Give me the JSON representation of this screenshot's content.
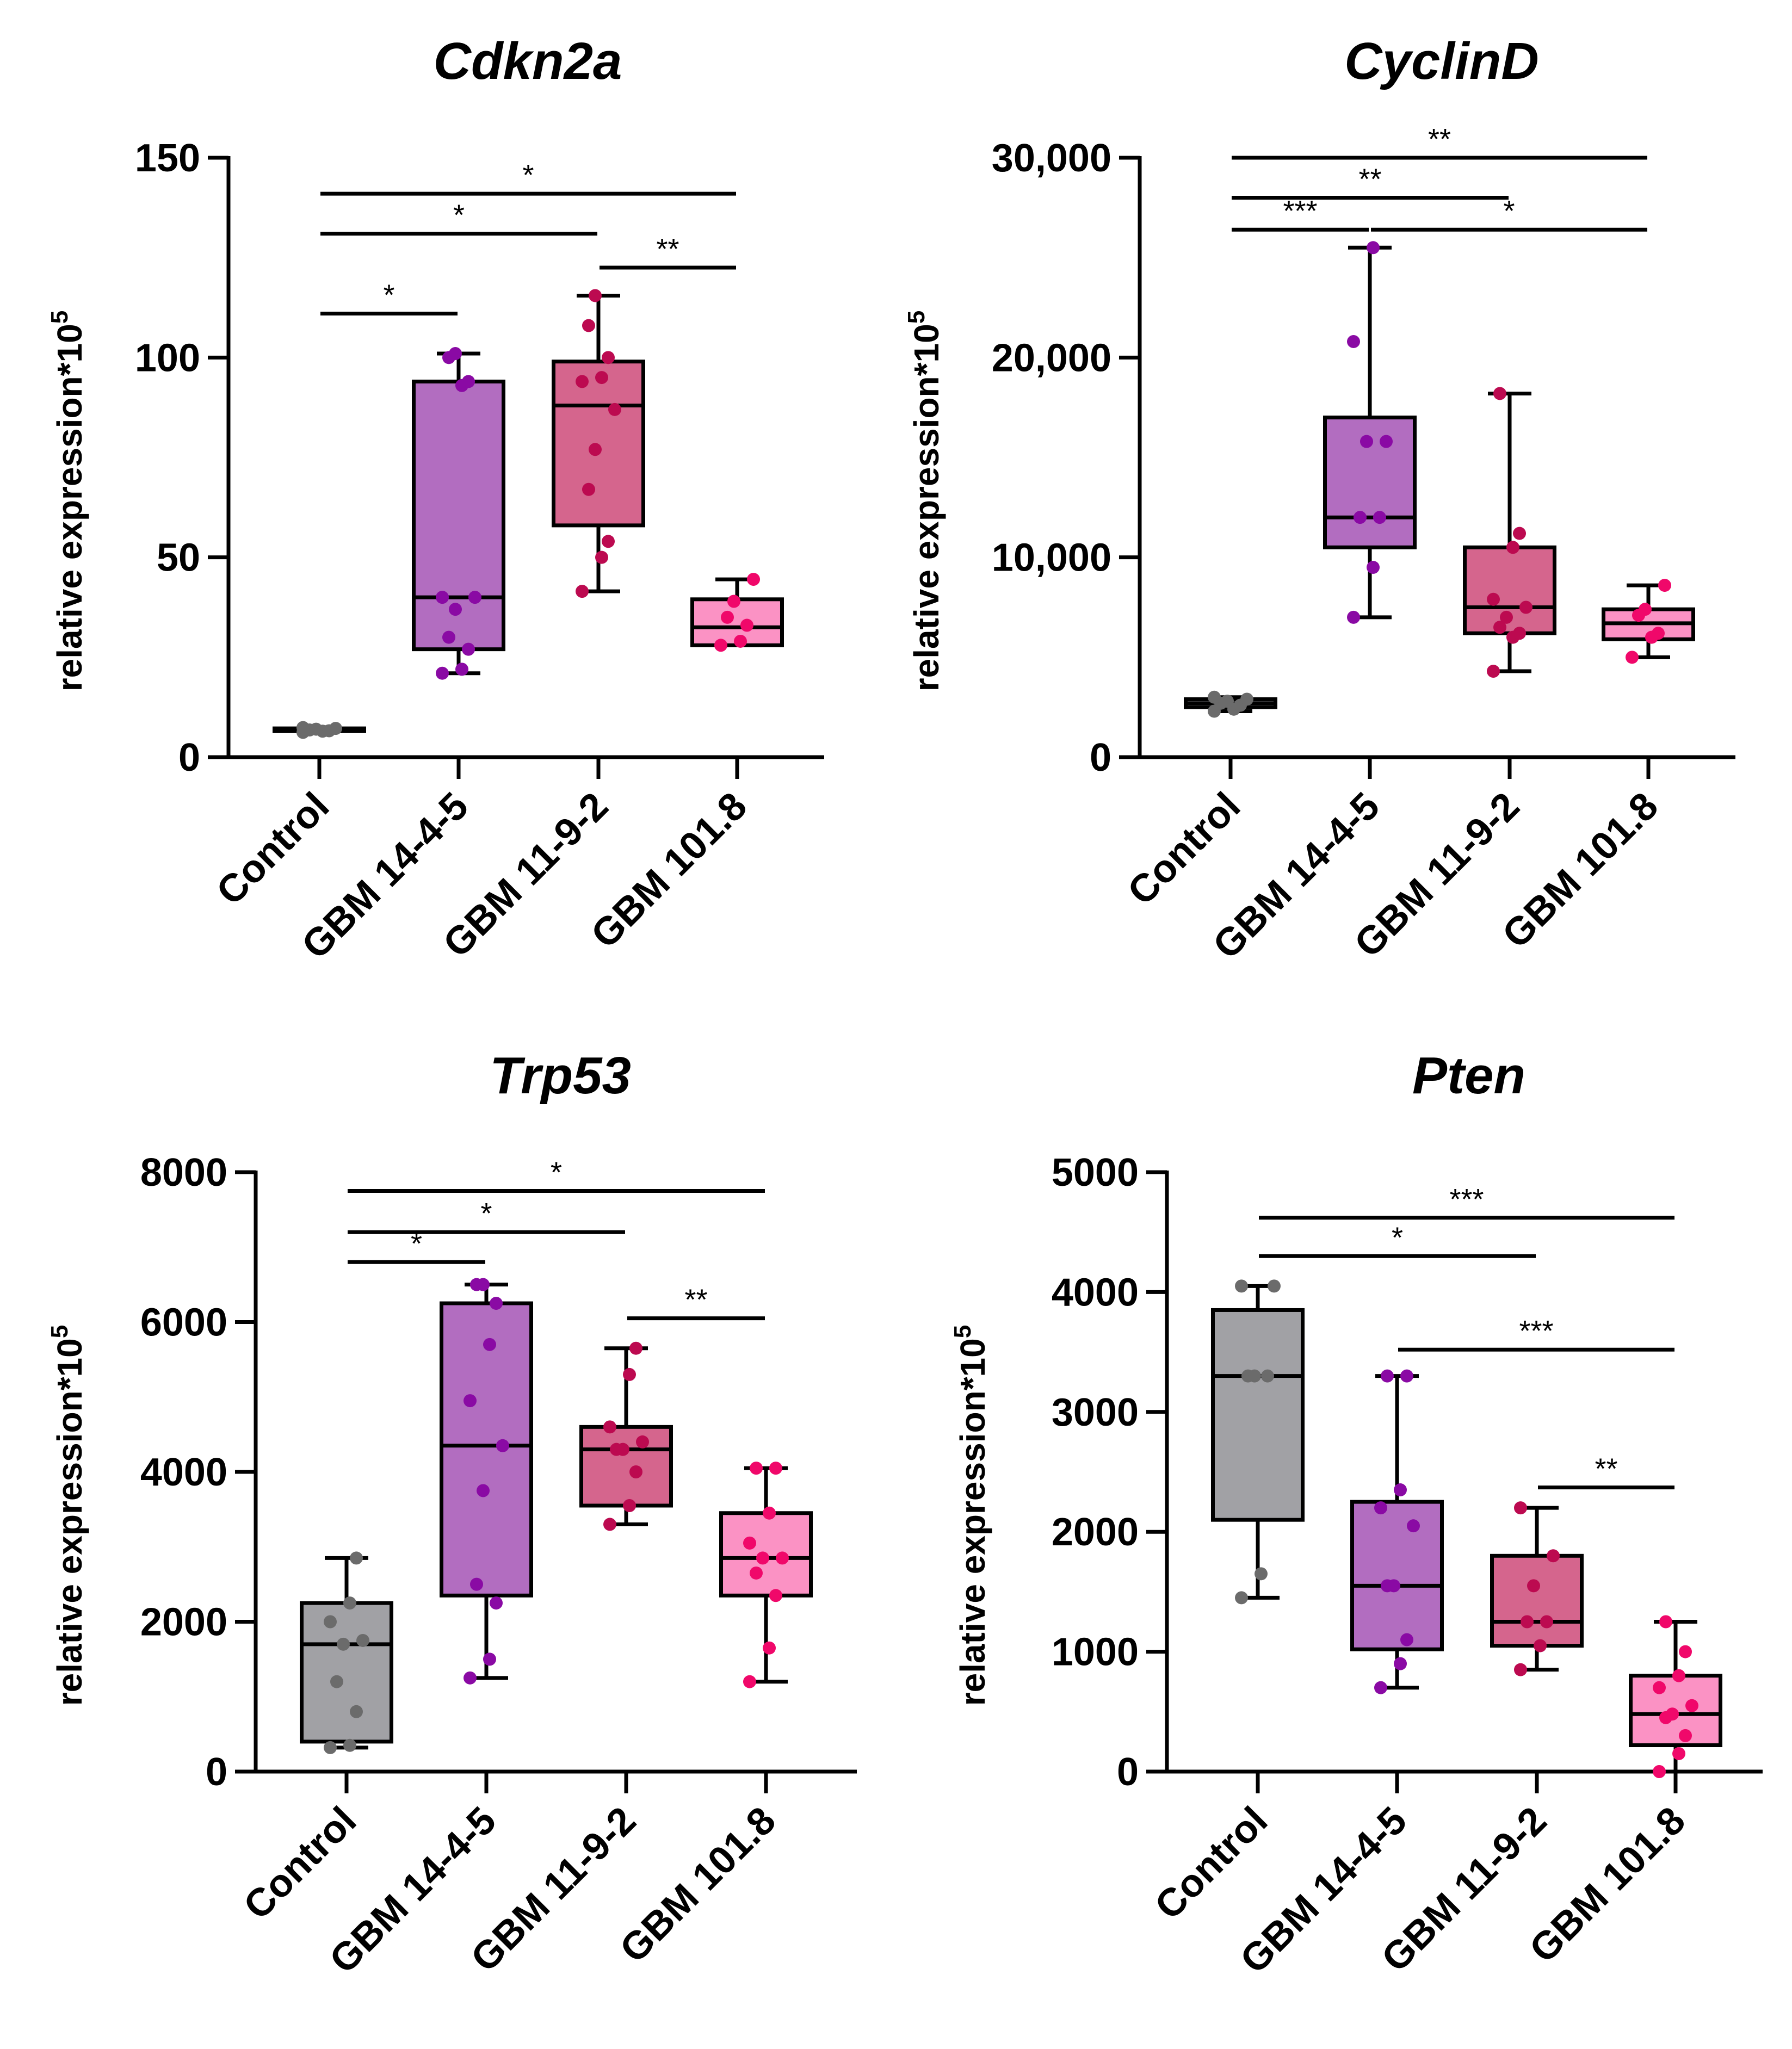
{
  "chart_data": [
    {
      "type": "box",
      "title": "Cdkn2a",
      "ylabel": "relative expression*10",
      "ylabel_superscript": "5",
      "ylim": [
        0,
        150
      ],
      "yticks": [
        0,
        50,
        100,
        150
      ],
      "ytick_labels": [
        "0",
        "50",
        "100",
        "150"
      ],
      "categories": [
        "Control",
        "GBM 14-4-5",
        "GBM 11-9-2",
        "GBM 101.8"
      ],
      "boxes": [
        {
          "whisker_low": 6.5,
          "q1": 6.5,
          "median": 6.8,
          "q3": 7.2,
          "whisker_high": 7.5,
          "points": [
            6.2,
            6.5,
            6.6,
            6.8,
            7.0,
            7.2,
            7.4
          ]
        },
        {
          "whisker_low": 21,
          "q1": 27,
          "median": 40,
          "q3": 94,
          "whisker_high": 101,
          "points": [
            21,
            22,
            27,
            30,
            37,
            40,
            40,
            93,
            94,
            100,
            101
          ]
        },
        {
          "whisker_low": 41.5,
          "q1": 58,
          "median": 88,
          "q3": 99,
          "whisker_high": 115.5,
          "points": [
            41.5,
            50,
            54,
            67,
            77,
            87,
            94,
            95,
            100,
            108,
            115.5
          ]
        },
        {
          "whisker_low": 28,
          "q1": 28,
          "median": 32.5,
          "q3": 39.5,
          "whisker_high": 44.5,
          "points": [
            28,
            29,
            33,
            35,
            39,
            44.5
          ]
        }
      ],
      "significance": [
        {
          "from": 0,
          "to": 3,
          "y": 141,
          "label": "*"
        },
        {
          "from": 0,
          "to": 2,
          "y": 131,
          "label": "*"
        },
        {
          "from": 2,
          "to": 3,
          "y": 122.5,
          "label": "**"
        },
        {
          "from": 0,
          "to": 1,
          "y": 111,
          "label": "*"
        }
      ]
    },
    {
      "type": "box",
      "title": "CyclinD",
      "ylabel": "relative expression*10",
      "ylabel_superscript": "5",
      "ylim": [
        0,
        30000
      ],
      "yticks": [
        0,
        10000,
        20000,
        30000
      ],
      "ytick_labels": [
        "0",
        "10,000",
        "20,000",
        "30,000"
      ],
      "categories": [
        "Control",
        "GBM 14-4-5",
        "GBM 11-9-2",
        "GBM 101.8"
      ],
      "boxes": [
        {
          "whisker_low": 2300,
          "q1": 2500,
          "median": 2700,
          "q3": 2900,
          "whisker_high": 3000,
          "points": [
            2300,
            2400,
            2600,
            2700,
            2800,
            2900,
            3000
          ]
        },
        {
          "whisker_low": 7000,
          "q1": 10500,
          "median": 12000,
          "q3": 17000,
          "whisker_high": 25500,
          "points": [
            7000,
            9500,
            12000,
            12000,
            15800,
            15800,
            20800,
            25500
          ]
        },
        {
          "whisker_low": 4300,
          "q1": 6200,
          "median": 7500,
          "q3": 10500,
          "whisker_high": 18200,
          "points": [
            4300,
            6000,
            6200,
            6500,
            7000,
            7500,
            7900,
            10500,
            11200,
            18200
          ]
        },
        {
          "whisker_low": 5000,
          "q1": 5900,
          "median": 6700,
          "q3": 7400,
          "whisker_high": 8600,
          "points": [
            5000,
            6000,
            6200,
            7100,
            7400,
            8600
          ]
        }
      ],
      "significance": [
        {
          "from": 0,
          "to": 3,
          "y": 30000,
          "label": "**"
        },
        {
          "from": 0,
          "to": 2,
          "y": 28000,
          "label": "**"
        },
        {
          "from": 0,
          "to": 1,
          "y": 26400,
          "label": "***"
        },
        {
          "from": 1,
          "to": 3,
          "y": 26400,
          "label": "*"
        }
      ]
    },
    {
      "type": "box",
      "title": "Trp53",
      "ylabel": "relative expression*10",
      "ylabel_superscript": "5",
      "ylim": [
        0,
        8000
      ],
      "yticks": [
        0,
        2000,
        4000,
        6000,
        8000
      ],
      "ytick_labels": [
        "0",
        "2000",
        "4000",
        "6000",
        "8000"
      ],
      "categories": [
        "Control",
        "GBM 14-4-5",
        "GBM 11-9-2",
        "GBM 101.8"
      ],
      "boxes": [
        {
          "whisker_low": 320,
          "q1": 400,
          "median": 1700,
          "q3": 2250,
          "whisker_high": 2850,
          "points": [
            320,
            350,
            800,
            1200,
            1700,
            1750,
            2000,
            2250,
            2850
          ]
        },
        {
          "whisker_low": 1250,
          "q1": 2350,
          "median": 4350,
          "q3": 6250,
          "whisker_high": 6500,
          "points": [
            1250,
            1500,
            2250,
            2500,
            3750,
            4350,
            4950,
            5700,
            6250,
            6500,
            6500
          ]
        },
        {
          "whisker_low": 3300,
          "q1": 3550,
          "median": 4300,
          "q3": 4600,
          "whisker_high": 5650,
          "points": [
            3300,
            3550,
            4000,
            4300,
            4300,
            4400,
            4600,
            5300,
            5650
          ]
        },
        {
          "whisker_low": 1200,
          "q1": 2350,
          "median": 2850,
          "q3": 3450,
          "whisker_high": 4050,
          "points": [
            1200,
            1650,
            2350,
            2650,
            2850,
            2850,
            3050,
            3450,
            4050,
            4050
          ]
        }
      ],
      "significance": [
        {
          "from": 0,
          "to": 3,
          "y": 7750,
          "label": "*"
        },
        {
          "from": 0,
          "to": 2,
          "y": 7200,
          "label": "*"
        },
        {
          "from": 0,
          "to": 1,
          "y": 6800,
          "label": "*"
        },
        {
          "from": 2,
          "to": 3,
          "y": 6050,
          "label": "**"
        }
      ]
    },
    {
      "type": "box",
      "title": "Pten",
      "ylabel": "relative expression*10",
      "ylabel_superscript": "5",
      "ylim": [
        0,
        5000
      ],
      "yticks": [
        0,
        1000,
        2000,
        3000,
        4000,
        5000
      ],
      "ytick_labels": [
        "0",
        "1000",
        "2000",
        "3000",
        "4000",
        "5000"
      ],
      "categories": [
        "Control",
        "GBM 14-4-5",
        "GBM 11-9-2",
        "GBM 101.8"
      ],
      "boxes": [
        {
          "whisker_low": 1450,
          "q1": 2100,
          "median": 3300,
          "q3": 3850,
          "whisker_high": 4050,
          "points": [
            1450,
            1650,
            3300,
            3300,
            3300,
            4050,
            4050
          ]
        },
        {
          "whisker_low": 700,
          "q1": 1020,
          "median": 1550,
          "q3": 2250,
          "whisker_high": 3300,
          "points": [
            700,
            900,
            1100,
            1550,
            1550,
            2050,
            2200,
            2350,
            3300,
            3300
          ]
        },
        {
          "whisker_low": 850,
          "q1": 1050,
          "median": 1250,
          "q3": 1800,
          "whisker_high": 2200,
          "points": [
            850,
            1050,
            1250,
            1250,
            1550,
            1800,
            2200
          ]
        },
        {
          "whisker_low": 0,
          "q1": 220,
          "median": 480,
          "q3": 800,
          "whisker_high": 1250,
          "points": [
            0,
            150,
            300,
            450,
            480,
            550,
            700,
            800,
            1000,
            1250
          ]
        }
      ],
      "significance": [
        {
          "from": 0,
          "to": 3,
          "y": 4620,
          "label": "***"
        },
        {
          "from": 0,
          "to": 2,
          "y": 4300,
          "label": "*"
        },
        {
          "from": 1,
          "to": 3,
          "y": 3520,
          "label": "***"
        },
        {
          "from": 2,
          "to": 3,
          "y": 2370,
          "label": "**"
        }
      ]
    }
  ],
  "colors": {
    "box_fills": [
      "#a1a1a5",
      "#b26dc0",
      "#d5658d",
      "#fb92c4"
    ],
    "point_colors": [
      "#6b6b6b",
      "#8a0aa4",
      "#bc0a50",
      "#f0086a"
    ],
    "axis": "#000000"
  }
}
